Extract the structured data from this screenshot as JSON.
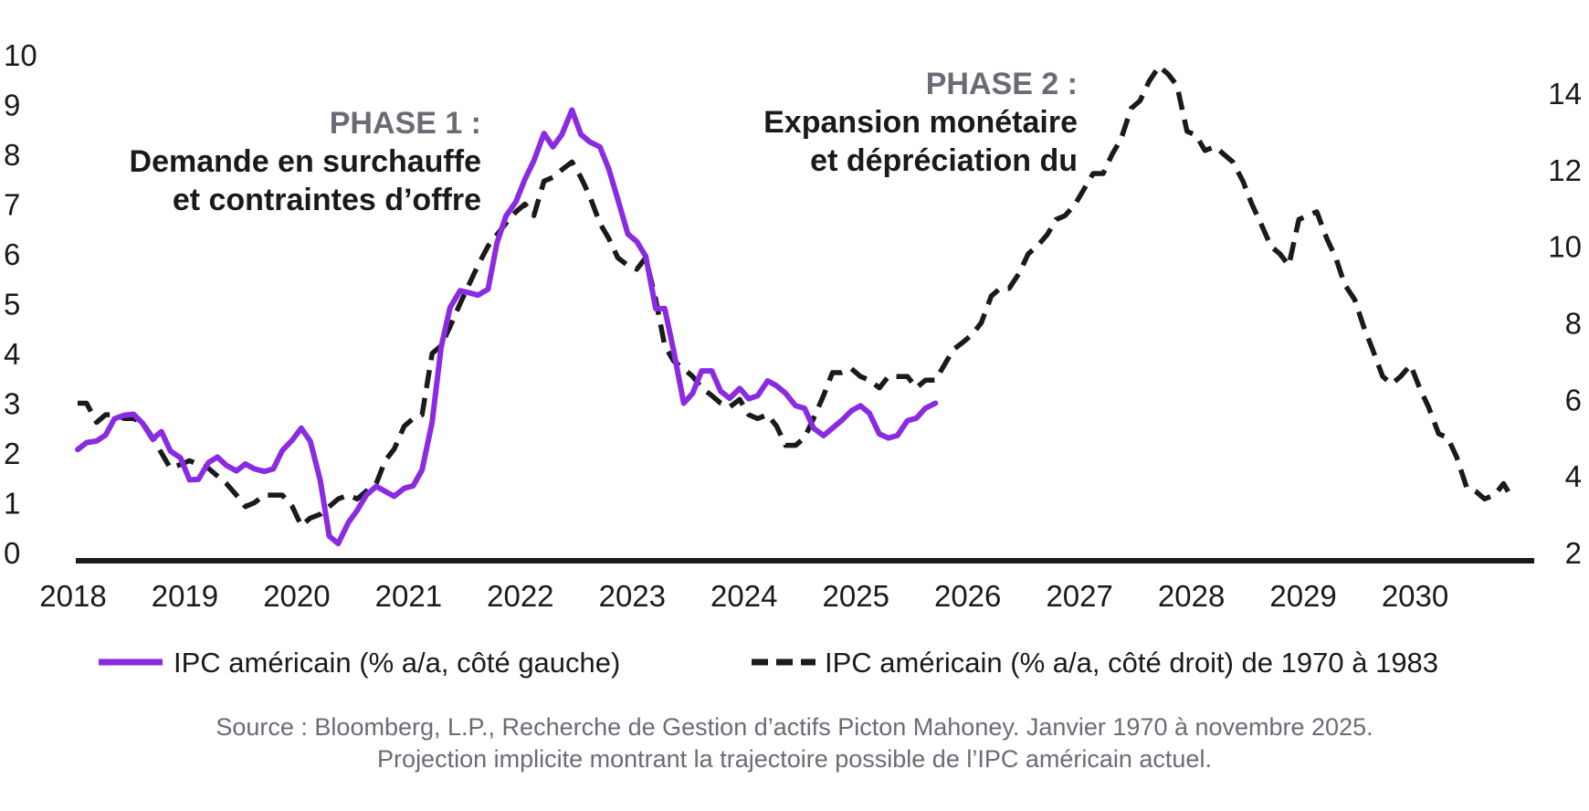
{
  "chart_data": {
    "type": "line",
    "title": "",
    "x_range": [
      2018,
      2031
    ],
    "x_ticks": [
      "2018",
      "2019",
      "2020",
      "2021",
      "2022",
      "2023",
      "2024",
      "2025",
      "2026",
      "2027",
      "2028",
      "2029",
      "2030"
    ],
    "y_left": {
      "range": [
        0,
        10
      ],
      "ticks": [
        "0",
        "1",
        "2",
        "3",
        "4",
        "5",
        "6",
        "7",
        "8",
        "9",
        "10"
      ]
    },
    "y_right": {
      "range": [
        2,
        15
      ],
      "ticks": [
        "2",
        "4",
        "6",
        "8",
        "10",
        "12",
        "14"
      ]
    },
    "series": [
      {
        "name": "IPC américain (% a/a, côté gauche)",
        "axis": "left",
        "style": "solid",
        "color": "#8a2be2",
        "points": [
          [
            2018.0,
            2.07
          ],
          [
            2018.08,
            2.21
          ],
          [
            2018.17,
            2.24
          ],
          [
            2018.25,
            2.36
          ],
          [
            2018.33,
            2.69
          ],
          [
            2018.42,
            2.76
          ],
          [
            2018.5,
            2.78
          ],
          [
            2018.58,
            2.6
          ],
          [
            2018.67,
            2.28
          ],
          [
            2018.75,
            2.43
          ],
          [
            2018.83,
            2.04
          ],
          [
            2018.92,
            1.9
          ],
          [
            2019.0,
            1.46
          ],
          [
            2019.08,
            1.47
          ],
          [
            2019.17,
            1.81
          ],
          [
            2019.25,
            1.92
          ],
          [
            2019.33,
            1.75
          ],
          [
            2019.42,
            1.64
          ],
          [
            2019.5,
            1.78
          ],
          [
            2019.58,
            1.68
          ],
          [
            2019.67,
            1.63
          ],
          [
            2019.75,
            1.68
          ],
          [
            2019.83,
            2.05
          ],
          [
            2019.92,
            2.26
          ],
          [
            2020.0,
            2.5
          ],
          [
            2020.08,
            2.24
          ],
          [
            2020.17,
            1.45
          ],
          [
            2020.25,
            0.33
          ],
          [
            2020.33,
            0.18
          ],
          [
            2020.42,
            0.6
          ],
          [
            2020.5,
            0.85
          ],
          [
            2020.58,
            1.15
          ],
          [
            2020.67,
            1.33
          ],
          [
            2020.75,
            1.23
          ],
          [
            2020.83,
            1.13
          ],
          [
            2020.92,
            1.29
          ],
          [
            2021.0,
            1.34
          ],
          [
            2021.08,
            1.66
          ],
          [
            2021.17,
            2.62
          ],
          [
            2021.25,
            4.12
          ],
          [
            2021.33,
            4.92
          ],
          [
            2021.42,
            5.26
          ],
          [
            2021.5,
            5.22
          ],
          [
            2021.58,
            5.17
          ],
          [
            2021.67,
            5.29
          ],
          [
            2021.75,
            6.22
          ],
          [
            2021.83,
            6.76
          ],
          [
            2021.92,
            7.05
          ],
          [
            2022.0,
            7.5
          ],
          [
            2022.08,
            7.87
          ],
          [
            2022.17,
            8.42
          ],
          [
            2022.25,
            8.15
          ],
          [
            2022.33,
            8.4
          ],
          [
            2022.42,
            8.89
          ],
          [
            2022.5,
            8.4
          ],
          [
            2022.58,
            8.25
          ],
          [
            2022.67,
            8.15
          ],
          [
            2022.75,
            7.7
          ],
          [
            2022.83,
            7.1
          ],
          [
            2022.92,
            6.4
          ],
          [
            2023.0,
            6.25
          ],
          [
            2023.08,
            5.95
          ],
          [
            2023.17,
            4.9
          ],
          [
            2023.25,
            4.9
          ],
          [
            2023.33,
            4.05
          ],
          [
            2023.42,
            3.0
          ],
          [
            2023.5,
            3.2
          ],
          [
            2023.58,
            3.65
          ],
          [
            2023.67,
            3.65
          ],
          [
            2023.75,
            3.24
          ],
          [
            2023.83,
            3.1
          ],
          [
            2023.92,
            3.3
          ],
          [
            2024.0,
            3.09
          ],
          [
            2024.08,
            3.15
          ],
          [
            2024.17,
            3.45
          ],
          [
            2024.25,
            3.35
          ],
          [
            2024.33,
            3.2
          ],
          [
            2024.42,
            2.95
          ],
          [
            2024.5,
            2.9
          ],
          [
            2024.58,
            2.5
          ],
          [
            2024.67,
            2.35
          ],
          [
            2024.75,
            2.5
          ],
          [
            2024.83,
            2.65
          ],
          [
            2024.92,
            2.85
          ],
          [
            2025.0,
            2.95
          ],
          [
            2025.08,
            2.8
          ],
          [
            2025.17,
            2.38
          ],
          [
            2025.25,
            2.3
          ],
          [
            2025.33,
            2.35
          ],
          [
            2025.42,
            2.65
          ],
          [
            2025.5,
            2.7
          ],
          [
            2025.58,
            2.9
          ],
          [
            2025.67,
            3.0
          ]
        ]
      },
      {
        "name": "IPC américain (% a/a, côté droit) de 1970 à 1983",
        "axis": "right",
        "style": "dashed",
        "color": "#1a1a1a",
        "points": [
          [
            2018.0,
            5.9
          ],
          [
            2018.08,
            5.9
          ],
          [
            2018.17,
            5.4
          ],
          [
            2018.25,
            5.6
          ],
          [
            2018.33,
            5.6
          ],
          [
            2018.42,
            5.5
          ],
          [
            2018.5,
            5.5
          ],
          [
            2018.58,
            5.4
          ],
          [
            2018.67,
            5.0
          ],
          [
            2018.75,
            4.6
          ],
          [
            2018.83,
            4.2
          ],
          [
            2018.92,
            4.3
          ],
          [
            2019.0,
            4.4
          ],
          [
            2019.08,
            4.3
          ],
          [
            2019.17,
            4.2
          ],
          [
            2019.25,
            4.0
          ],
          [
            2019.33,
            3.8
          ],
          [
            2019.42,
            3.5
          ],
          [
            2019.5,
            3.2
          ],
          [
            2019.58,
            3.3
          ],
          [
            2019.67,
            3.5
          ],
          [
            2019.75,
            3.5
          ],
          [
            2019.83,
            3.5
          ],
          [
            2019.92,
            3.2
          ],
          [
            2020.0,
            2.7
          ],
          [
            2020.08,
            2.9
          ],
          [
            2020.17,
            3.0
          ],
          [
            2020.25,
            3.2
          ],
          [
            2020.33,
            3.4
          ],
          [
            2020.42,
            3.5
          ],
          [
            2020.5,
            3.4
          ],
          [
            2020.58,
            3.6
          ],
          [
            2020.67,
            3.8
          ],
          [
            2020.75,
            4.4
          ],
          [
            2020.83,
            4.7
          ],
          [
            2020.92,
            5.3
          ],
          [
            2021.0,
            5.5
          ],
          [
            2021.08,
            5.6
          ],
          [
            2021.17,
            7.2
          ],
          [
            2021.25,
            7.4
          ],
          [
            2021.33,
            7.9
          ],
          [
            2021.42,
            8.5
          ],
          [
            2021.5,
            9.0
          ],
          [
            2021.58,
            9.5
          ],
          [
            2021.67,
            10.0
          ],
          [
            2021.75,
            10.3
          ],
          [
            2021.83,
            10.6
          ],
          [
            2021.92,
            10.9
          ],
          [
            2022.0,
            11.1
          ],
          [
            2022.08,
            10.8
          ],
          [
            2022.17,
            11.7
          ],
          [
            2022.25,
            11.8
          ],
          [
            2022.33,
            12.0
          ],
          [
            2022.42,
            12.2
          ],
          [
            2022.5,
            11.8
          ],
          [
            2022.58,
            11.3
          ],
          [
            2022.67,
            10.6
          ],
          [
            2022.75,
            10.2
          ],
          [
            2022.83,
            9.7
          ],
          [
            2022.92,
            9.5
          ],
          [
            2023.0,
            9.4
          ],
          [
            2023.08,
            9.7
          ],
          [
            2023.17,
            8.6
          ],
          [
            2023.25,
            7.4
          ],
          [
            2023.33,
            7.0
          ],
          [
            2023.42,
            6.8
          ],
          [
            2023.5,
            6.6
          ],
          [
            2023.58,
            6.3
          ],
          [
            2023.67,
            6.1
          ],
          [
            2023.75,
            5.9
          ],
          [
            2023.83,
            5.8
          ],
          [
            2023.92,
            6.0
          ],
          [
            2024.0,
            5.6
          ],
          [
            2024.08,
            5.5
          ],
          [
            2024.17,
            5.6
          ],
          [
            2024.25,
            5.3
          ],
          [
            2024.33,
            4.8
          ],
          [
            2024.42,
            4.8
          ],
          [
            2024.5,
            5.0
          ],
          [
            2024.58,
            5.5
          ],
          [
            2024.67,
            6.1
          ],
          [
            2024.75,
            6.7
          ],
          [
            2024.83,
            6.7
          ],
          [
            2024.92,
            6.8
          ],
          [
            2025.0,
            6.6
          ],
          [
            2025.08,
            6.5
          ],
          [
            2025.17,
            6.3
          ],
          [
            2025.25,
            6.6
          ],
          [
            2025.33,
            6.6
          ],
          [
            2025.42,
            6.6
          ],
          [
            2025.5,
            6.3
          ],
          [
            2025.58,
            6.5
          ],
          [
            2025.67,
            6.5
          ],
          [
            2025.75,
            6.9
          ],
          [
            2025.83,
            7.3
          ],
          [
            2025.92,
            7.5
          ],
          [
            2026.0,
            7.7
          ],
          [
            2026.08,
            8.0
          ],
          [
            2026.17,
            8.7
          ],
          [
            2026.25,
            8.9
          ],
          [
            2026.33,
            8.9
          ],
          [
            2026.42,
            9.3
          ],
          [
            2026.5,
            9.8
          ],
          [
            2026.58,
            10.0
          ],
          [
            2026.67,
            10.3
          ],
          [
            2026.75,
            10.7
          ],
          [
            2026.83,
            10.8
          ],
          [
            2026.92,
            11.1
          ],
          [
            2027.0,
            11.5
          ],
          [
            2027.08,
            11.9
          ],
          [
            2027.17,
            11.9
          ],
          [
            2027.25,
            12.4
          ],
          [
            2027.33,
            12.8
          ],
          [
            2027.42,
            13.6
          ],
          [
            2027.5,
            13.8
          ],
          [
            2027.58,
            14.3
          ],
          [
            2027.67,
            14.7
          ],
          [
            2027.75,
            14.5
          ],
          [
            2027.83,
            14.2
          ],
          [
            2027.92,
            13.0
          ],
          [
            2028.0,
            12.9
          ],
          [
            2028.08,
            12.5
          ],
          [
            2028.17,
            12.6
          ],
          [
            2028.25,
            12.4
          ],
          [
            2028.33,
            12.2
          ],
          [
            2028.42,
            11.7
          ],
          [
            2028.5,
            11.1
          ],
          [
            2028.58,
            10.6
          ],
          [
            2028.67,
            10.0
          ],
          [
            2028.75,
            9.8
          ],
          [
            2028.83,
            9.5
          ],
          [
            2028.92,
            10.7
          ],
          [
            2029.0,
            10.8
          ],
          [
            2029.08,
            10.9
          ],
          [
            2029.17,
            10.2
          ],
          [
            2029.25,
            9.7
          ],
          [
            2029.33,
            9.0
          ],
          [
            2029.42,
            8.6
          ],
          [
            2029.5,
            7.9
          ],
          [
            2029.58,
            7.3
          ],
          [
            2029.67,
            6.6
          ],
          [
            2029.75,
            6.4
          ],
          [
            2029.83,
            6.6
          ],
          [
            2029.92,
            6.9
          ],
          [
            2030.0,
            6.3
          ],
          [
            2030.08,
            5.8
          ],
          [
            2030.17,
            5.1
          ],
          [
            2030.25,
            5.0
          ],
          [
            2030.33,
            4.5
          ],
          [
            2030.42,
            3.7
          ],
          [
            2030.5,
            3.6
          ],
          [
            2030.58,
            3.4
          ],
          [
            2030.67,
            3.5
          ],
          [
            2030.75,
            3.8
          ],
          [
            2030.83,
            3.4
          ]
        ]
      }
    ],
    "legend_position": "bottom",
    "annotations": [
      {
        "id": "phase1",
        "title": "PHASE 1 :",
        "lines": [
          "Demande en surchauffe",
          "et contraintes d’offre"
        ]
      },
      {
        "id": "phase2",
        "title": "PHASE 2 :",
        "lines": [
          "Expansion monétaire",
          "et dépréciation du"
        ]
      }
    ]
  },
  "source": [
    "Source : Bloomberg, L.P., Recherche de Gestion d’actifs Picton Mahoney. Janvier 1970 à novembre 2025.",
    "Projection implicite montrant la trajectoire possible de l’IPC américain actuel."
  ]
}
